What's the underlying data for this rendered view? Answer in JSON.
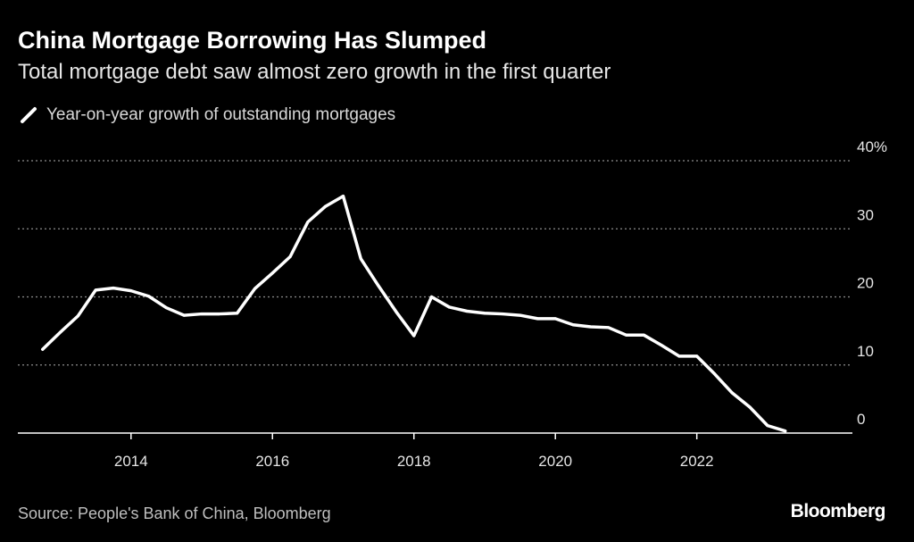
{
  "header": {
    "title": "China Mortgage Borrowing Has Slumped",
    "subtitle": "Total mortgage debt saw almost zero growth in the first quarter"
  },
  "legend": {
    "label": "Year-on-year growth of outstanding mortgages"
  },
  "footer": {
    "source": "Source: People's Bank of China, Bloomberg",
    "brand": "Bloomberg"
  },
  "colors": {
    "background": "#000000",
    "line": "#ffffff",
    "grid": "#8c8c8c",
    "axis": "#ffffff"
  },
  "chart_data": {
    "type": "line",
    "title": "China Mortgage Borrowing Has Slumped",
    "subtitle": "Total mortgage debt saw almost zero growth in the first quarter",
    "xlabel": "",
    "ylabel": "",
    "xlim": [
      2012.4,
      2024.2
    ],
    "ylim": [
      0,
      40
    ],
    "grid": true,
    "legend_position": "top-left",
    "y_ticks": [
      {
        "value": 0,
        "label": "0"
      },
      {
        "value": 10,
        "label": "10"
      },
      {
        "value": 20,
        "label": "20"
      },
      {
        "value": 30,
        "label": "30"
      },
      {
        "value": 40,
        "label": "40%"
      }
    ],
    "x_ticks": [
      {
        "value": 2014,
        "label": "2014"
      },
      {
        "value": 2016,
        "label": "2016"
      },
      {
        "value": 2018,
        "label": "2018"
      },
      {
        "value": 2020,
        "label": "2020"
      },
      {
        "value": 2022,
        "label": "2022"
      }
    ],
    "series": [
      {
        "name": "Year-on-year growth of outstanding mortgages",
        "x": [
          2012.75,
          2013.0,
          2013.25,
          2013.5,
          2013.75,
          2014.0,
          2014.25,
          2014.5,
          2014.75,
          2015.0,
          2015.25,
          2015.5,
          2015.75,
          2016.0,
          2016.25,
          2016.5,
          2016.75,
          2017.0,
          2017.25,
          2017.5,
          2017.75,
          2018.0,
          2018.25,
          2018.5,
          2018.75,
          2019.0,
          2019.25,
          2019.5,
          2019.75,
          2020.0,
          2020.25,
          2020.5,
          2020.75,
          2021.0,
          2021.25,
          2021.5,
          2021.75,
          2022.0,
          2022.25,
          2022.5,
          2022.75,
          2023.0,
          2023.25
        ],
        "values": [
          12.3,
          14.8,
          17.2,
          21.0,
          21.3,
          20.9,
          20.1,
          18.4,
          17.3,
          17.5,
          17.5,
          17.6,
          21.2,
          23.5,
          25.9,
          31.0,
          33.3,
          34.8,
          25.6,
          21.6,
          17.8,
          14.3,
          20.0,
          18.5,
          17.9,
          17.6,
          17.5,
          17.3,
          16.8,
          16.8,
          15.9,
          15.6,
          15.5,
          14.4,
          14.4,
          12.9,
          11.3,
          11.3,
          8.7,
          5.9,
          3.8,
          1.1,
          0.3
        ]
      }
    ]
  }
}
